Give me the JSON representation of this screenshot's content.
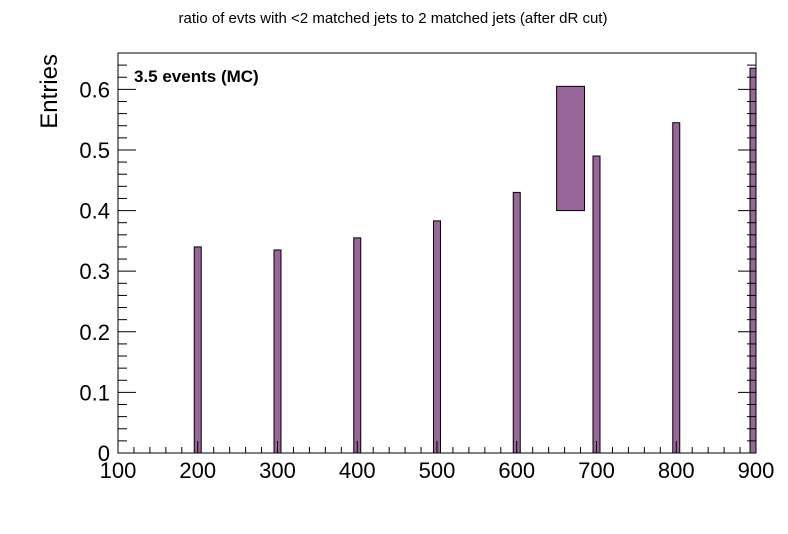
{
  "chart_data": {
    "type": "bar",
    "title": "ratio of evts with <2 matched jets to 2 matched jets (after dR cut)",
    "xlabel": "",
    "ylabel": "Entries",
    "annotation": "3.5 events (MC)",
    "xlim": [
      100,
      900
    ],
    "ylim": [
      0,
      0.66
    ],
    "x_ticks": [
      "100",
      "200",
      "300",
      "400",
      "500",
      "600",
      "700",
      "800",
      "900"
    ],
    "y_ticks": [
      "0",
      "0.1",
      "0.2",
      "0.3",
      "0.4",
      "0.5",
      "0.6"
    ],
    "grid": false,
    "bar_color": "#996699",
    "series": [
      {
        "bars": [
          {
            "x": 200,
            "value": 0.34
          },
          {
            "x": 300,
            "value": 0.335
          },
          {
            "x": 400,
            "value": 0.355
          },
          {
            "x": 500,
            "value": 0.383
          },
          {
            "x": 600,
            "value": 0.43
          },
          {
            "x": 700,
            "value": 0.49
          },
          {
            "x": 800,
            "value": 0.545
          },
          {
            "x": 900,
            "value": 0.635
          }
        ]
      }
    ],
    "box": {
      "x_low": 650,
      "x_high": 685,
      "y_low": 0.4,
      "y_high": 0.605
    }
  }
}
